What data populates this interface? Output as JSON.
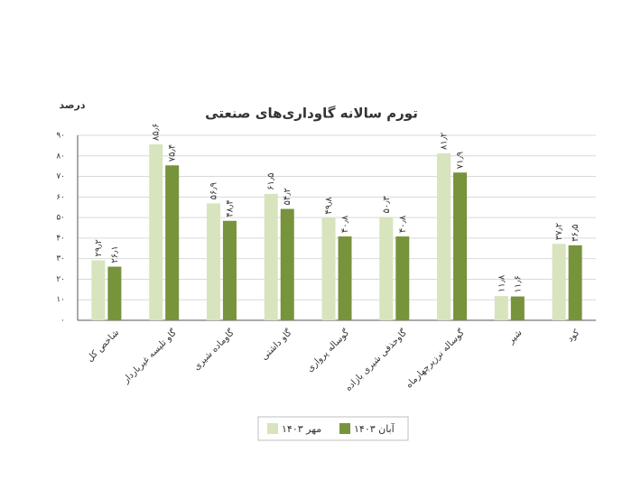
{
  "chart_data": {
    "type": "bar",
    "title": "تورم سالانه گاوداری‌های صنعتی",
    "y_label": "درصد",
    "categories": [
      "شاخص کل",
      "گاو تلیسه غیرباردار",
      "گاوماده شیری",
      "گاو داشتی",
      "گوساله پرواری",
      "گاوحذفی شیری بازاده",
      "گوساله نرزیرچهارماه",
      "شیر",
      "کود"
    ],
    "series": [
      {
        "name": "مهر ۱۴۰۳",
        "color": "#d7e4bd",
        "values": [
          29.2,
          85.6,
          56.9,
          61.5,
          49.8,
          50.3,
          81.2,
          11.8,
          37.2
        ],
        "value_labels": [
          "۲۹٫۲",
          "۸۵٫۶",
          "۵۶٫۹",
          "۶۱٫۵",
          "۴۹٫۸",
          "۵۰٫۳",
          "۸۱٫۲",
          "۱۱٫۸",
          "۳۷٫۲"
        ]
      },
      {
        "name": "آبان ۱۴۰۳",
        "color": "#77933c",
        "values": [
          26.1,
          75.4,
          48.4,
          54.2,
          40.8,
          40.8,
          71.9,
          11.6,
          36.5
        ],
        "value_labels": [
          "۲۶٫۱",
          "۷۵٫۴",
          "۴۸٫۴",
          "۵۴٫۲",
          "۴۰٫۸",
          "۴۰٫۸",
          "۷۱٫۹",
          "۱۱٫۶",
          "۳۶٫۵"
        ]
      }
    ],
    "ylim": [
      0,
      90
    ],
    "yticks": [
      {
        "value": 0,
        "label": "۰"
      },
      {
        "value": 10,
        "label": "۱۰"
      },
      {
        "value": 20,
        "label": "۲۰"
      },
      {
        "value": 30,
        "label": "۳۰"
      },
      {
        "value": 40,
        "label": "۴۰"
      },
      {
        "value": 50,
        "label": "۵۰"
      },
      {
        "value": 60,
        "label": "۶۰"
      },
      {
        "value": 70,
        "label": "۷۰"
      },
      {
        "value": 80,
        "label": "۸۰"
      },
      {
        "value": 90,
        "label": "۹۰"
      }
    ],
    "grid": true
  }
}
